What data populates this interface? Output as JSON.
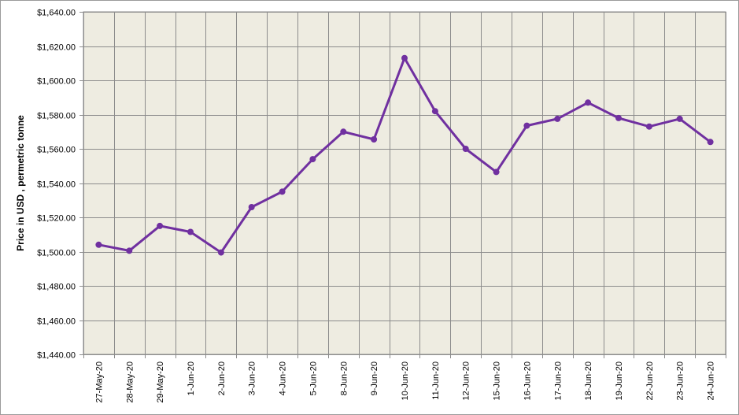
{
  "chart_data": {
    "type": "line",
    "title": "",
    "xlabel": "",
    "ylabel": "Price in USD , permetric tonne",
    "categories": [
      "27-May-20",
      "28-May-20",
      "29-May-20",
      "1-Jun-20",
      "2-Jun-20",
      "3-Jun-20",
      "4-Jun-20",
      "5-Jun-20",
      "8-Jun-20",
      "9-Jun-20",
      "10-Jun-20",
      "11-Jun-20",
      "12-Jun-20",
      "15-Jun-20",
      "16-Jun-20",
      "17-Jun-20",
      "18-Jun-20",
      "19-Jun-20",
      "22-Jun-20",
      "23-Jun-20",
      "24-Jun-20"
    ],
    "series": [
      {
        "values": [
          1504,
          1500.5,
          1515,
          1511.5,
          1499.5,
          1526,
          1535,
          1554,
          1570,
          1565.5,
          1613,
          1582,
          1560,
          1546.5,
          1573.5,
          1577.5,
          1587,
          1578,
          1573,
          1577.5,
          1564
        ]
      }
    ],
    "ylim": [
      1440,
      1640
    ],
    "yticks": [
      "$1,440.00",
      "$1,460.00",
      "$1,480.00",
      "$1,500.00",
      "$1,520.00",
      "$1,540.00",
      "$1,560.00",
      "$1,580.00",
      "$1,600.00",
      "$1,620.00",
      "$1,640.00"
    ],
    "grid": true,
    "colors": {
      "line": "#7030a0",
      "plot_bg": "#eeece1",
      "grid": "#8c8c8c"
    }
  }
}
